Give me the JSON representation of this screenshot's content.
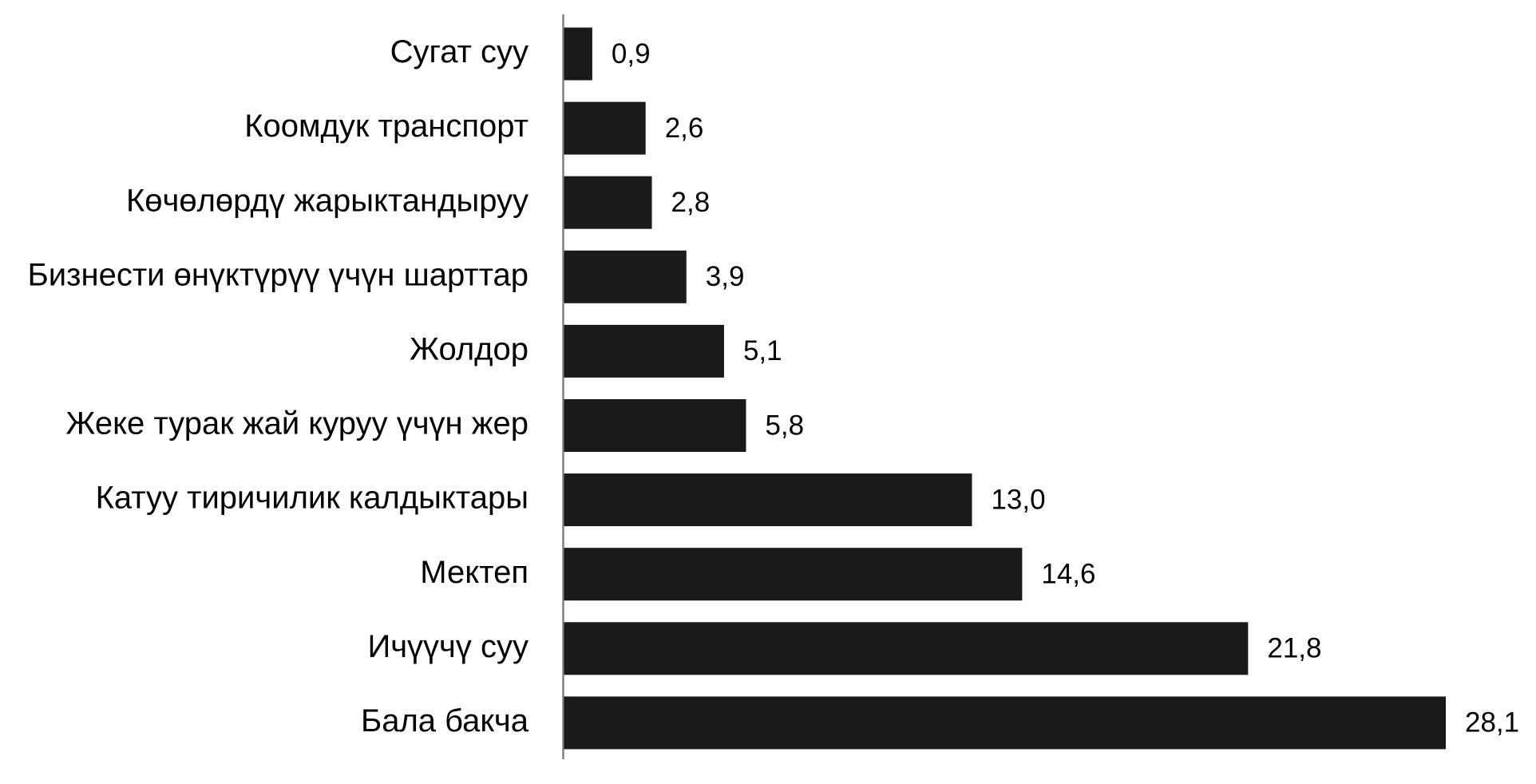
{
  "chart_data": {
    "type": "bar",
    "orientation": "horizontal",
    "categories": [
      "Сугат суу",
      "Коомдук транспорт",
      "Көчөлөрдү жарыктандыруу",
      "Бизнести өнүктүрүү үчүн шарттар",
      "Жолдор",
      "Жеке турак жай куруу үчүн жер",
      "Катуу тиричилик калдыктары",
      "Мектеп",
      "Ичүүчү суу",
      "Бала бакча"
    ],
    "values": [
      0.9,
      2.6,
      2.8,
      3.9,
      5.1,
      5.8,
      13.0,
      14.6,
      21.8,
      28.1
    ],
    "value_labels": [
      "0,9",
      "2,6",
      "2,8",
      "3,9",
      "5,1",
      "5,8",
      "13,0",
      "14,6",
      "21,8",
      "28,1"
    ],
    "color": "#1a1a1a"
  }
}
